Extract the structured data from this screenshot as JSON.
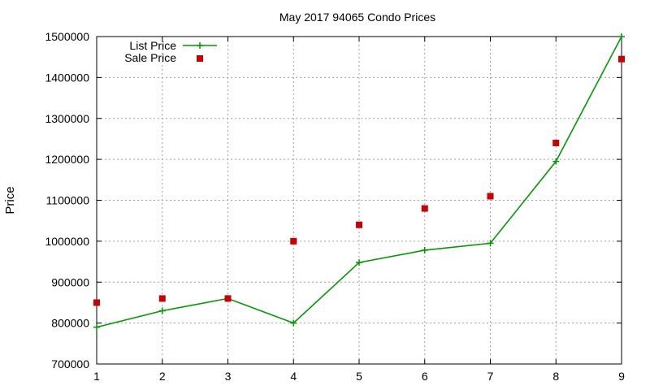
{
  "chart_data": {
    "type": "line",
    "title": "May 2017 94065 Condo Prices",
    "xlabel": "",
    "ylabel": "Price",
    "xlim": [
      1,
      9
    ],
    "ylim": [
      700000,
      1500000
    ],
    "x_ticks": [
      1,
      2,
      3,
      4,
      5,
      6,
      7,
      8,
      9
    ],
    "y_ticks": [
      700000,
      800000,
      900000,
      1000000,
      1100000,
      1200000,
      1300000,
      1400000,
      1500000
    ],
    "grid": true,
    "legend_position": "top-left",
    "series": [
      {
        "name": "List Price",
        "style": "line-with-plus-markers",
        "color": "#009900",
        "x": [
          1,
          2,
          3,
          4,
          5,
          6,
          7,
          8,
          9
        ],
        "y": [
          790000,
          830000,
          860000,
          800000,
          948000,
          978000,
          995000,
          1195000,
          1500000
        ]
      },
      {
        "name": "Sale Price",
        "style": "square-markers",
        "color": "#cc0000",
        "x": [
          1,
          2,
          3,
          4,
          5,
          6,
          7,
          8,
          9
        ],
        "y": [
          850000,
          860000,
          860000,
          1000000,
          1040000,
          1080000,
          1110000,
          1240000,
          1445000
        ]
      }
    ]
  }
}
